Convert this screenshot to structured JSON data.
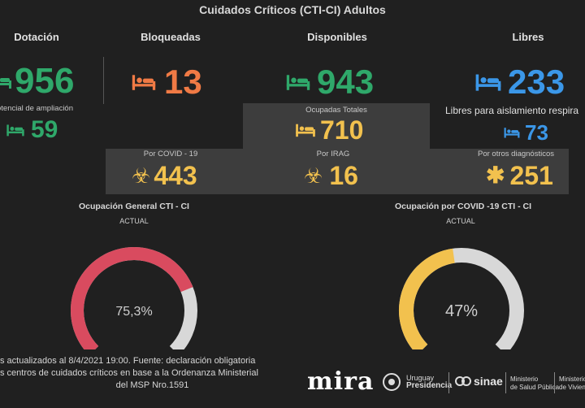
{
  "title": "Cuidados Críticos (CTI-CI) Adultos",
  "dotacion": {
    "label": "Dotación",
    "value": "956",
    "sub_label": "otencial de ampliación",
    "sub_value": "59"
  },
  "bloqueadas": {
    "label": "Bloqueadas",
    "value": "13"
  },
  "disponibles": {
    "label": "Disponibles",
    "value": "943"
  },
  "libres": {
    "label": "Libres",
    "value": "233",
    "sub_label": "Libres para aislamiento respira",
    "sub_value": "73"
  },
  "ocupadas": {
    "label": "Ocupadas Totales",
    "value": "710"
  },
  "covid": {
    "label": "Por COVID - 19",
    "value": "443"
  },
  "irag": {
    "label": "Por IRAG",
    "value": "16"
  },
  "otros": {
    "label": "Por otros diagnósticos",
    "value": "251"
  },
  "gauge_general": {
    "title": "Ocupación General CTI - CI",
    "caption": "ACTUAL",
    "value_label": "75,3%",
    "fraction": 0.753,
    "color": "#d94b5f",
    "track": "#d8d8d8"
  },
  "gauge_covid": {
    "title": "Ocupación por COVID -19 CTI - CI",
    "caption": "ACTUAL",
    "value_label": "47%",
    "fraction": 0.47,
    "color": "#f2c14e",
    "track": "#d8d8d8"
  },
  "footer": {
    "line1": "s actualizados al 8/4/2021 19:00. Fuente: declaración obligatoria",
    "line2": "s centros de cuidados críticos en base a la Ordenanza Ministerial",
    "line3": "del MSP Nro.1591"
  },
  "logos": {
    "mira": "mira",
    "uruguay": "Uruguay",
    "presidencia": "Presidencia",
    "sinae": "sinae",
    "msp1": "Ministerio",
    "msp2": "de Salud Pública",
    "mvot1": "Ministerio",
    "mvot2": "de Vivienda y"
  },
  "icons": {
    "bed": "bed-icon",
    "biohazard": "biohazard-icon",
    "asterisk": "asterisk-icon"
  }
}
